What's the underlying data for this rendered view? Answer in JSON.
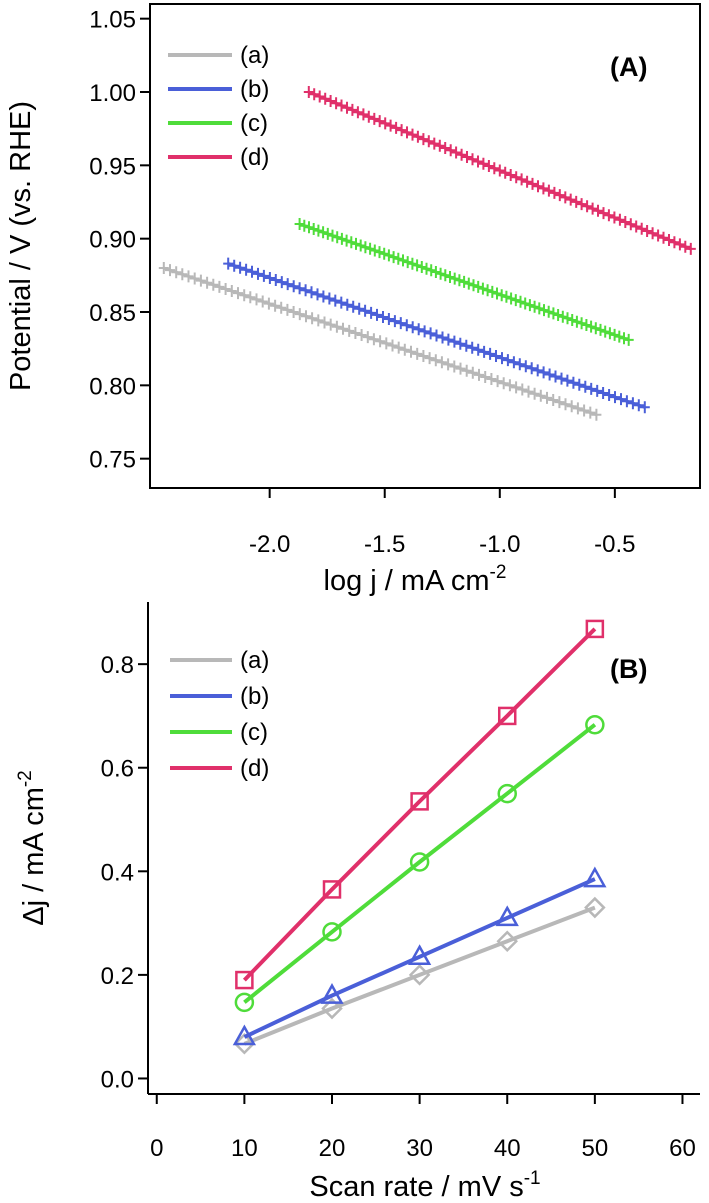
{
  "chart_data": [
    {
      "type": "line",
      "panel_label": "(A)",
      "xlabel": "log j / mA cm",
      "xlabel_sup": "-2",
      "ylabel": "Potential / V (vs. RHE)",
      "xlim": [
        -2.52,
        -0.13
      ],
      "ylim": [
        0.73,
        1.06
      ],
      "x_ticks": [
        -2.0,
        -1.5,
        -1.0,
        -0.5
      ],
      "x_tick_labels": [
        "-2.0",
        "-1.5",
        "-1.0",
        "-0.5"
      ],
      "y_ticks": [
        0.75,
        0.8,
        0.85,
        0.9,
        0.95,
        1.0,
        1.05
      ],
      "y_tick_labels": [
        "0.75",
        "0.80",
        "0.85",
        "0.90",
        "0.95",
        "1.00",
        "1.05"
      ],
      "legend_position": "top-left",
      "marker": "plus",
      "series": [
        {
          "name": "(a)",
          "color": "#b8b8b8",
          "x_start": -2.46,
          "x_end": -0.58,
          "y_start": 0.88,
          "y_end": 0.78
        },
        {
          "name": "(b)",
          "color": "#4a5fd8",
          "x_start": -2.18,
          "x_end": -0.37,
          "y_start": 0.883,
          "y_end": 0.785
        },
        {
          "name": "(c)",
          "color": "#4fdc3a",
          "x_start": -1.87,
          "x_end": -0.44,
          "y_start": 0.91,
          "y_end": 0.831
        },
        {
          "name": "(d)",
          "color": "#e0306a",
          "x_start": -1.83,
          "x_end": -0.17,
          "y_start": 1.0,
          "y_end": 0.893
        }
      ]
    },
    {
      "type": "line",
      "panel_label": "(B)",
      "xlabel": "Scan rate / mV s",
      "xlabel_sup": "-1",
      "ylabel": "Δj / mA cm",
      "ylabel_sup": "-2",
      "xlim": [
        -1,
        62
      ],
      "ylim": [
        -0.03,
        0.92
      ],
      "x_ticks": [
        0,
        10,
        20,
        30,
        40,
        50,
        60
      ],
      "x_tick_labels": [
        "0",
        "10",
        "20",
        "30",
        "40",
        "50",
        "60"
      ],
      "y_ticks": [
        0.0,
        0.2,
        0.4,
        0.6,
        0.8
      ],
      "y_tick_labels": [
        "0.0",
        "0.2",
        "0.4",
        "0.6",
        "0.8"
      ],
      "legend_position": "top-left",
      "x": [
        10,
        20,
        30,
        40,
        50
      ],
      "series": [
        {
          "name": "(a)",
          "color": "#b8b8b8",
          "marker": "diamond",
          "values": [
            0.067,
            0.135,
            0.2,
            0.265,
            0.33
          ]
        },
        {
          "name": "(b)",
          "color": "#4a5fd8",
          "marker": "triangle",
          "values": [
            0.08,
            0.16,
            0.235,
            0.31,
            0.385
          ]
        },
        {
          "name": "(c)",
          "color": "#4fdc3a",
          "marker": "circle",
          "values": [
            0.147,
            0.283,
            0.418,
            0.55,
            0.683
          ]
        },
        {
          "name": "(d)",
          "color": "#e0306a",
          "marker": "square",
          "values": [
            0.19,
            0.365,
            0.535,
            0.7,
            0.868
          ]
        }
      ]
    }
  ]
}
